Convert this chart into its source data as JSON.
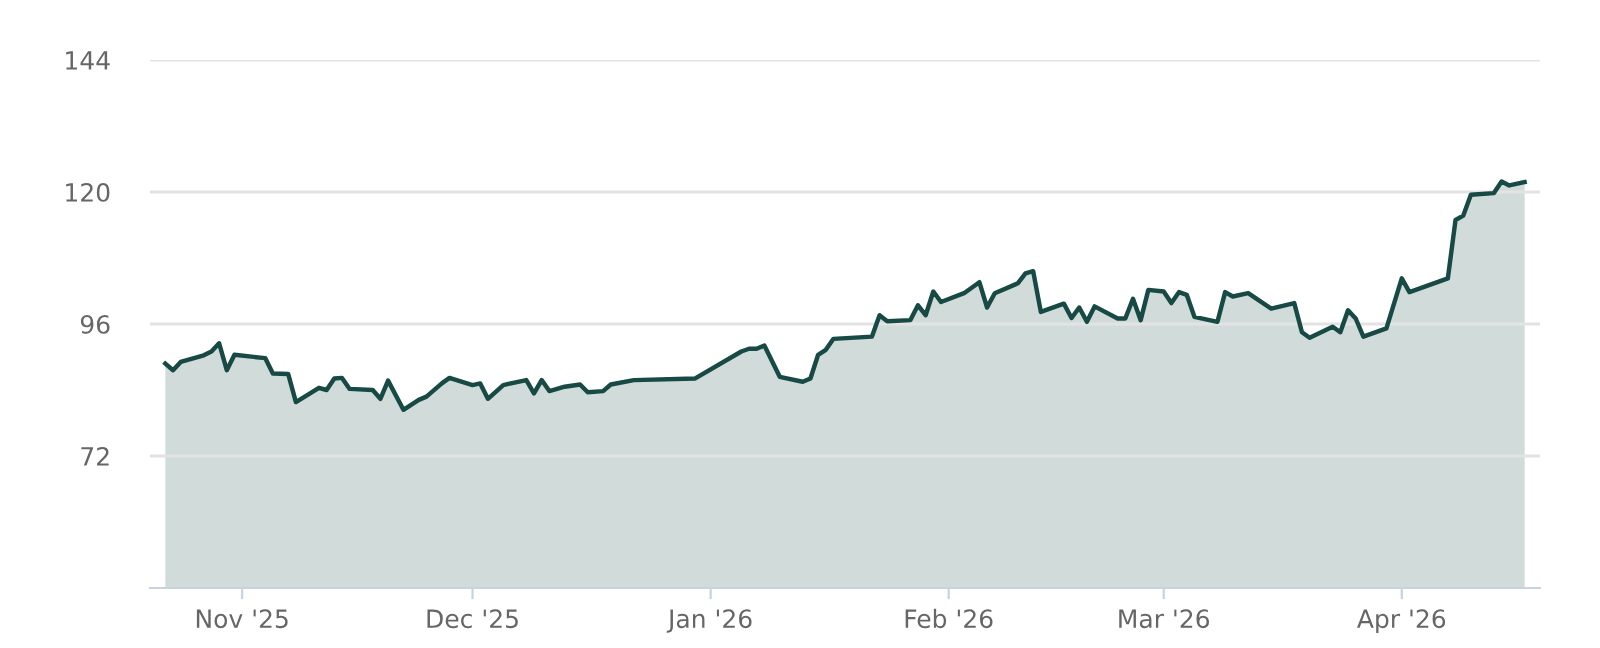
{
  "chart_data": {
    "type": "area",
    "x": [
      "2025-10-22",
      "2025-10-23",
      "2025-10-24",
      "2025-10-27",
      "2025-10-28",
      "2025-10-29",
      "2025-10-30",
      "2025-10-31",
      "2025-11-04",
      "2025-11-05",
      "2025-11-07",
      "2025-11-08",
      "2025-11-11",
      "2025-11-12",
      "2025-11-13",
      "2025-11-14",
      "2025-11-15",
      "2025-11-18",
      "2025-11-19",
      "2025-11-20",
      "2025-11-22",
      "2025-11-24",
      "2025-11-25",
      "2025-11-27",
      "2025-11-28",
      "2025-12-01",
      "2025-12-02",
      "2025-12-03",
      "2025-12-05",
      "2025-12-08",
      "2025-12-09",
      "2025-12-10",
      "2025-12-11",
      "2025-12-13",
      "2025-12-15",
      "2025-12-16",
      "2025-12-18",
      "2025-12-19",
      "2025-12-22",
      "2025-12-30",
      "2026-01-05",
      "2026-01-06",
      "2026-01-07",
      "2026-01-08",
      "2026-01-10",
      "2026-01-13",
      "2026-01-14",
      "2026-01-15",
      "2026-01-16",
      "2026-01-17",
      "2026-01-22",
      "2026-01-23",
      "2026-01-24",
      "2026-01-27",
      "2026-01-28",
      "2026-01-29",
      "2026-01-30",
      "2026-01-31",
      "2026-02-03",
      "2026-02-05",
      "2026-02-06",
      "2026-02-07",
      "2026-02-10",
      "2026-02-11",
      "2026-02-12",
      "2026-02-13",
      "2026-02-16",
      "2026-02-17",
      "2026-02-18",
      "2026-02-19",
      "2026-02-20",
      "2026-02-23",
      "2026-02-24",
      "2026-02-25",
      "2026-02-26",
      "2026-02-27",
      "2026-03-01",
      "2026-03-02",
      "2026-03-03",
      "2026-03-04",
      "2026-03-05",
      "2026-03-08",
      "2026-03-09",
      "2026-03-10",
      "2026-03-12",
      "2026-03-15",
      "2026-03-18",
      "2026-03-19",
      "2026-03-20",
      "2026-03-23",
      "2026-03-24",
      "2026-03-25",
      "2026-03-26",
      "2026-03-27",
      "2026-03-30",
      "2026-04-01",
      "2026-04-02",
      "2026-04-07",
      "2026-04-08",
      "2026-04-09",
      "2026-04-10",
      "2026-04-13",
      "2026-04-14",
      "2026-04-15",
      "2026-04-17"
    ],
    "series": [
      {
        "color": "#184a45",
        "values": [
          88.8,
          87.6,
          89.1,
          90.3,
          91.0,
          92.5,
          87.6,
          90.4,
          89.8,
          87.0,
          86.9,
          81.8,
          84.4,
          84.0,
          86.1,
          86.2,
          84.2,
          84.0,
          82.4,
          85.7,
          80.4,
          82.2,
          82.8,
          85.2,
          86.2,
          84.9,
          85.2,
          82.4,
          84.9,
          85.8,
          83.4,
          85.8,
          83.8,
          84.6,
          85.0,
          83.6,
          83.8,
          85.0,
          85.8,
          86.1,
          91.0,
          91.5,
          91.5,
          92.1,
          86.4,
          85.5,
          86.1,
          90.4,
          91.3,
          93.3,
          93.7,
          97.6,
          96.5,
          96.7,
          99.4,
          97.6,
          101.9,
          100.0,
          101.6,
          103.6,
          99.0,
          101.6,
          103.4,
          105.2,
          105.6,
          98.2,
          99.7,
          97.1,
          99.0,
          96.4,
          99.2,
          97.0,
          97.0,
          100.6,
          96.7,
          102.2,
          101.9,
          99.8,
          101.8,
          101.3,
          97.3,
          96.4,
          101.8,
          101.0,
          101.6,
          98.8,
          99.8,
          94.5,
          93.5,
          95.5,
          94.5,
          98.5,
          97.0,
          93.7,
          95.2,
          104.3,
          101.8,
          104.3,
          114.9,
          115.7,
          119.5,
          119.8,
          121.9,
          121.2,
          121.8
        ]
      }
    ],
    "ylim": [
      48,
      144
    ],
    "yticks": [
      72,
      96,
      120,
      144
    ],
    "xlim": [
      "2025-10-20",
      "2026-04-19"
    ],
    "xticks": [
      {
        "value": "2025-11-01",
        "label": "Nov '25"
      },
      {
        "value": "2025-12-01",
        "label": "Dec '25"
      },
      {
        "value": "2026-01-01",
        "label": "Jan '26"
      },
      {
        "value": "2026-02-01",
        "label": "Feb '26"
      },
      {
        "value": "2026-03-01",
        "label": "Mar '26"
      },
      {
        "value": "2026-04-01",
        "label": "Apr '26"
      }
    ],
    "grid": "y",
    "legend": false,
    "marker": "none",
    "line_style": "solid"
  }
}
